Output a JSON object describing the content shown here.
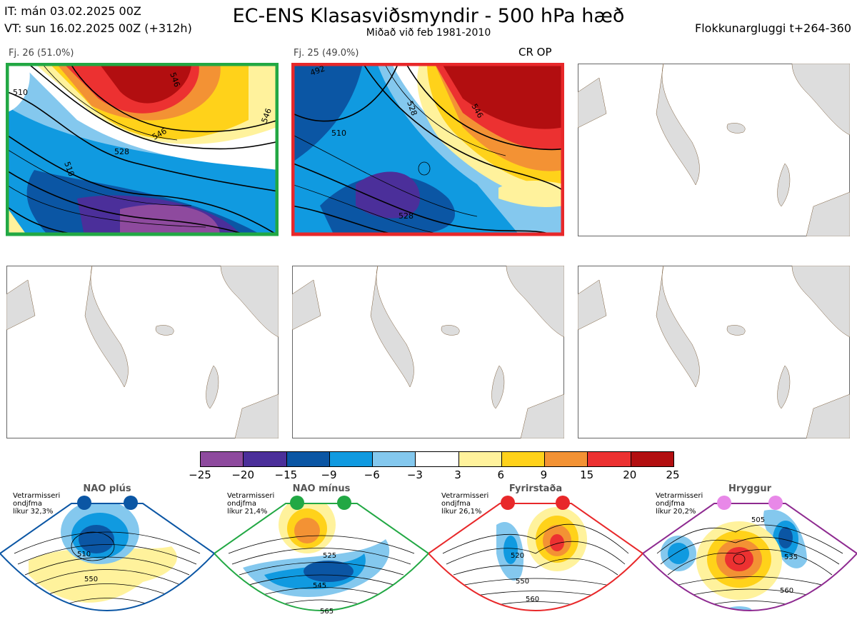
{
  "header": {
    "it_line": "IT: mán 03.02.2025 00Z",
    "vt_line": "VT: sun 16.02.2025 00Z  (+312h)",
    "title": "EC-ENS Klasasviðsmyndir - 500 hPa hæð",
    "subtitle": "Miðað við feb 1981-2010",
    "window": "Flokkunargluggi t+264-360"
  },
  "clusters": [
    {
      "label": "Fj. 26 (51.0%)",
      "border": "#22a844",
      "extra": ""
    },
    {
      "label": "Fj. 25 (49.0%)",
      "border": "#e8282a",
      "extra": "CR OP"
    }
  ],
  "colorbar": {
    "colors": [
      "#8e4a9e",
      "#4b2f9a",
      "#0b56a4",
      "#109ae0",
      "#84c8ee",
      "#ffffff",
      "#fff29c",
      "#ffd21a",
      "#f39234",
      "#ec3131",
      "#b20e10"
    ],
    "ticks": [
      "−25",
      "−20",
      "−15",
      "−9",
      "−6",
      "−3",
      "3",
      "6",
      "9",
      "15",
      "20",
      "25"
    ]
  },
  "regimes": [
    {
      "name": "NAO plús",
      "note1": "Vetrarmisseri",
      "note2": "ondjfma",
      "note3": "líkur 32,3%",
      "color": "#0b56a4",
      "c1": "510",
      "c2": "550",
      "c3": ""
    },
    {
      "name": "NAO mínus",
      "note1": "Vetrarmisseri",
      "note2": "ondjfma",
      "note3": "líkur 21,4%",
      "color": "#22a844",
      "c1": "525",
      "c2": "545",
      "c3": "565"
    },
    {
      "name": "Fyrirstaða",
      "note1": "Vetrarmisseri",
      "note2": "ondjfma",
      "note3": "líkur 26,1%",
      "color": "#e8282a",
      "c1": "520",
      "c2": "550",
      "c3": "560"
    },
    {
      "name": "Hryggur",
      "note1": "Vetrarmisseri",
      "note2": "ondjfma",
      "note3": "líkur 20,2%",
      "color": "#8e2a90",
      "c1": "505",
      "c2": "535",
      "c3": "560"
    }
  ]
}
